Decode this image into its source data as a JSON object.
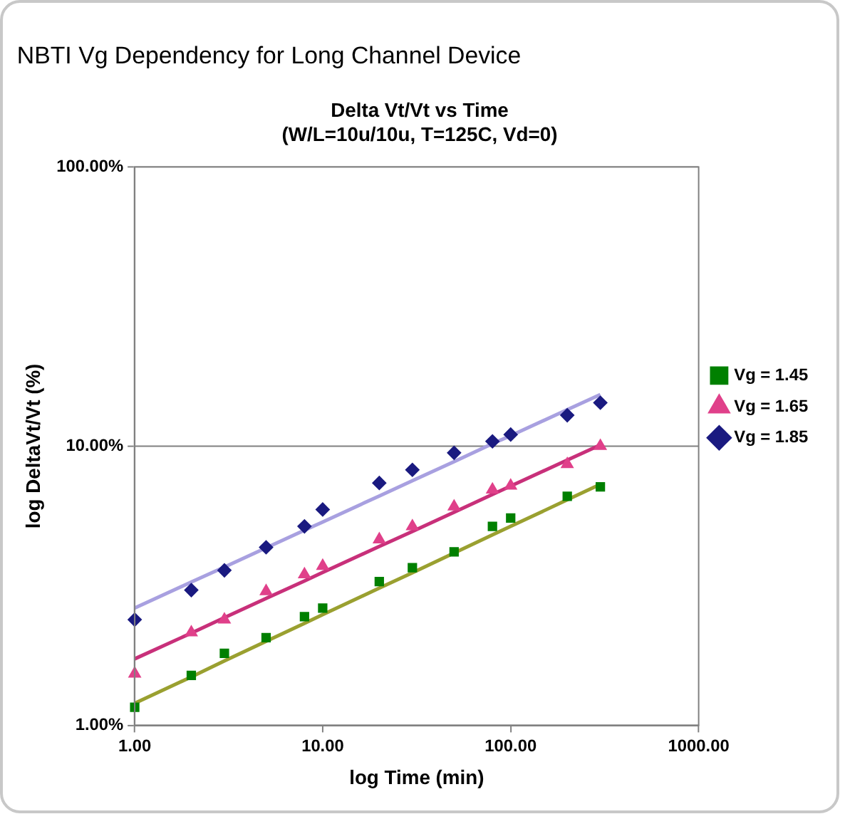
{
  "chart_data": {
    "type": "scatter",
    "title": "NBTI Vg Dependency for Long Channel Device",
    "subtitle": "Delta Vt/Vt vs Time\n(W/L=10u/10u, T=125C, Vd=0)",
    "xlabel": "log Time (min)",
    "ylabel": "log DeltaVt/Vt (%)",
    "log": "xy",
    "grid": "y",
    "legend": "right",
    "xlim": [
      1,
      1000
    ],
    "xticks": [
      {
        "value": 1,
        "label": "1.00"
      },
      {
        "value": 10,
        "label": "10.00"
      },
      {
        "value": 100,
        "label": "100.00"
      },
      {
        "value": 1000,
        "label": "1000.00"
      }
    ],
    "ylim": [
      1,
      100
    ],
    "yticks": [
      {
        "value": 1,
        "label": "1.00%"
      },
      {
        "value": 10,
        "label": "10.00%"
      },
      {
        "value": 100,
        "label": "100.00%"
      }
    ],
    "x": [
      1,
      2,
      3,
      5,
      8,
      10,
      20,
      30,
      50,
      80,
      100,
      200,
      300
    ],
    "series": [
      {
        "name": "Vg = 1.45",
        "type": "scatter",
        "marker": "square",
        "color": "#008000",
        "values": [
          1.16,
          1.51,
          1.81,
          2.06,
          2.45,
          2.63,
          3.27,
          3.67,
          4.18,
          5.16,
          5.53,
          6.61,
          7.15
        ]
      },
      {
        "name": "Vg = 1.65",
        "type": "scatter",
        "marker": "triangle",
        "color": "#e0408a",
        "values": [
          1.53,
          2.15,
          2.39,
          3.02,
          3.47,
          3.72,
          4.63,
          5.16,
          6.07,
          6.98,
          7.21,
          8.61,
          10.0
        ]
      },
      {
        "name": "Vg = 1.85",
        "type": "scatter",
        "marker": "diamond",
        "color": "#1a1a80",
        "values": [
          2.39,
          3.05,
          3.59,
          4.34,
          5.16,
          5.93,
          7.38,
          8.22,
          9.46,
          10.4,
          11.0,
          12.9,
          14.3
        ]
      },
      {
        "type": "line",
        "marker": "none",
        "line_style": "solid",
        "color": "#9aa030",
        "values": [
          1.2,
          1.49,
          1.7,
          2.0,
          2.32,
          2.49,
          3.1,
          3.52,
          4.14,
          4.81,
          5.16,
          6.42,
          7.3
        ]
      },
      {
        "type": "line",
        "marker": "none",
        "line_style": "solid",
        "color": "#c8307a",
        "values": [
          1.73,
          2.14,
          2.43,
          2.85,
          3.29,
          3.53,
          4.37,
          4.95,
          5.8,
          6.71,
          7.19,
          8.91,
          10.1
        ]
      },
      {
        "type": "line",
        "marker": "none",
        "line_style": "solid",
        "color": "#a8a0e0",
        "values": [
          2.63,
          3.26,
          3.69,
          4.32,
          5.0,
          5.35,
          6.63,
          7.52,
          8.8,
          10.2,
          10.9,
          13.5,
          15.3
        ]
      }
    ]
  }
}
